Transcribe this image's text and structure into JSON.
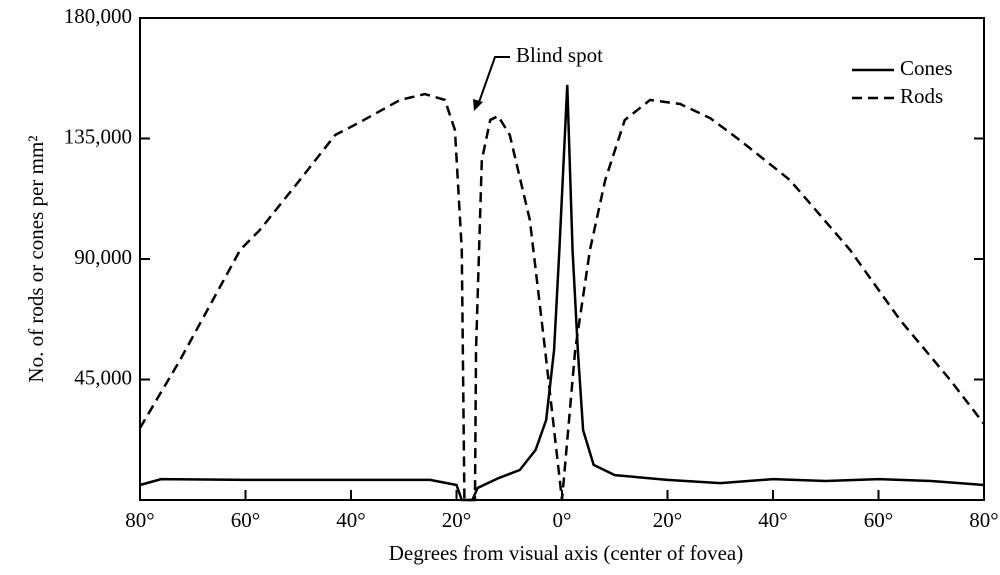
{
  "chart_data": {
    "type": "line",
    "annotation": "Blind spot",
    "xlabel": "Degrees from visual axis (center of fovea)",
    "ylabel": "No. of rods or cones per mm²",
    "xlim": [
      -80,
      80
    ],
    "xticks": [
      {
        "value": -80,
        "label": "80°"
      },
      {
        "value": -60,
        "label": "60°"
      },
      {
        "value": -40,
        "label": "40°"
      },
      {
        "value": -20,
        "label": "20°"
      },
      {
        "value": 0,
        "label": "0°"
      },
      {
        "value": 20,
        "label": "20°"
      },
      {
        "value": 40,
        "label": "40°"
      },
      {
        "value": 60,
        "label": "60°"
      },
      {
        "value": 80,
        "label": "80°"
      }
    ],
    "ylim": [
      0,
      180000
    ],
    "yticks": [
      {
        "value": 45000,
        "label": "45,000"
      },
      {
        "value": 90000,
        "label": "90,000"
      },
      {
        "value": 135000,
        "label": "135,000"
      },
      {
        "value": 180000,
        "label": "180,000"
      }
    ],
    "legend": "upper right",
    "series": [
      {
        "name": "Cones",
        "color": "#000000",
        "style": "solid",
        "x": [
          -80,
          -76,
          -60,
          -40,
          -25,
          -20,
          -19,
          -17,
          -16,
          -12,
          -8,
          -5,
          -3,
          -1.5,
          -0.5,
          1,
          2,
          3,
          4,
          6,
          10,
          20,
          30,
          40,
          50,
          60,
          70,
          80
        ],
        "values": [
          5600,
          7800,
          7500,
          7500,
          7500,
          5600,
          0,
          0,
          4500,
          8200,
          11200,
          18700,
          29900,
          56000,
          93400,
          155000,
          93400,
          56000,
          26100,
          13100,
          9300,
          7500,
          6300,
          7800,
          7100,
          7800,
          7100,
          5600
        ]
      },
      {
        "name": "Rods",
        "color": "#000000",
        "style": "dashed",
        "x": [
          -80,
          -72.4,
          -61,
          -57.3,
          -49.7,
          -43,
          -38.3,
          -30.7,
          -26,
          -22.2,
          -20.3,
          -19,
          -18.5,
          -16.5,
          -16.3,
          -15.2,
          -13.6,
          -12.1,
          -9.9,
          -6.1,
          -3.2,
          0,
          2.5,
          5.3,
          8.2,
          11.9,
          16.7,
          22.4,
          28.1,
          33.7,
          43.2,
          54.6,
          64.1,
          73.6,
          80
        ],
        "values": [
          26900,
          52300,
          93400,
          100800,
          119500,
          136300,
          141100,
          149400,
          151600,
          149400,
          138200,
          93400,
          0,
          0,
          56000,
          127000,
          141900,
          143400,
          136300,
          104600,
          56000,
          0,
          56000,
          93400,
          119500,
          141900,
          149400,
          147900,
          142600,
          134400,
          119500,
          93400,
          67200,
          44800,
          28400
        ]
      }
    ]
  }
}
